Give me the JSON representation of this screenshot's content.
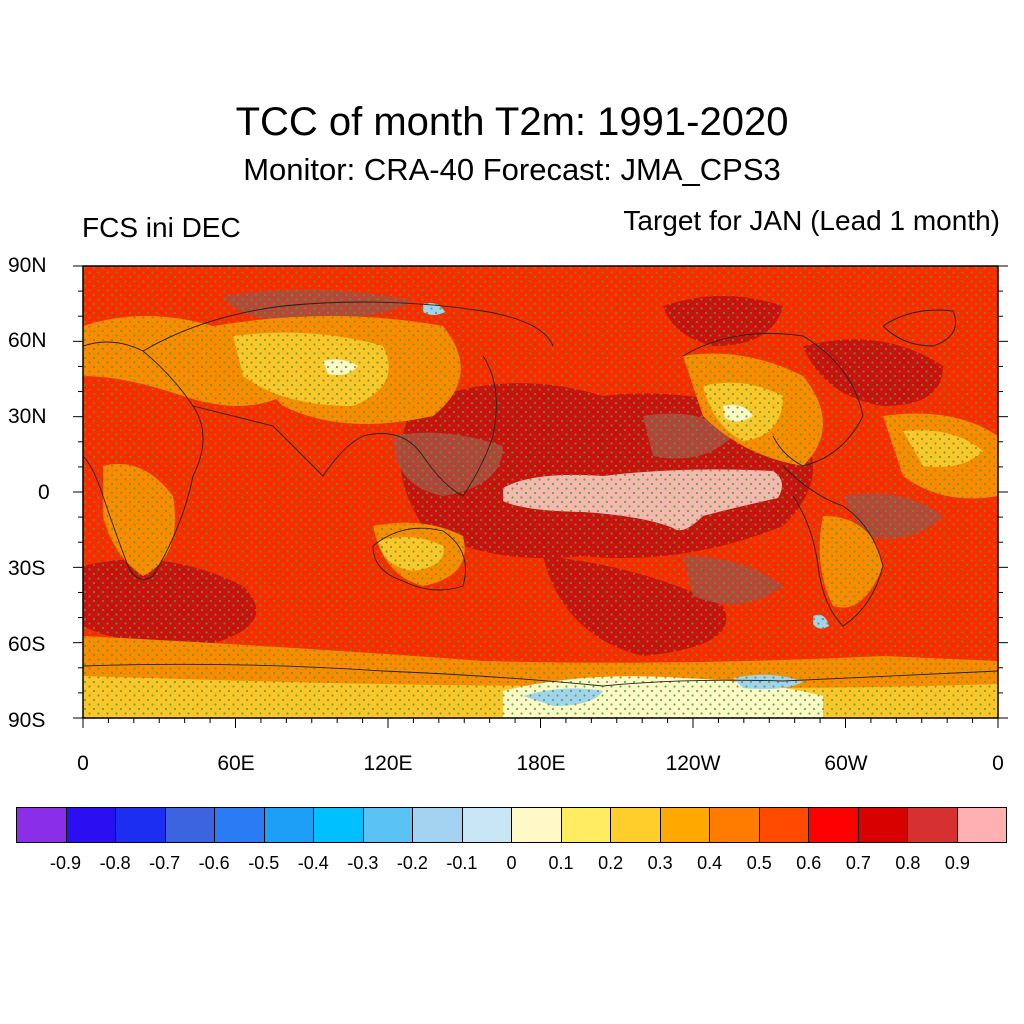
{
  "title": "TCC of month T2m: 1991-2020",
  "subtitle": "Monitor: CRA-40   Forecast: JMA_CPS3",
  "left_label": "FCS ini DEC",
  "right_label": "Target for JAN (Lead 1 month)",
  "lat_labels": [
    "90N",
    "60N",
    "30N",
    "0",
    "30S",
    "60S",
    "90S"
  ],
  "lon_labels": [
    "0",
    "60E",
    "120E",
    "180E",
    "120W",
    "60W",
    "0"
  ],
  "colorbar": {
    "colors": [
      "#8a2ee8",
      "#2b0ff2",
      "#1b2ef2",
      "#3c63e0",
      "#2b7bf5",
      "#1c9ff7",
      "#00c0ff",
      "#5bc3f3",
      "#a3d3f0",
      "#c9e6f7",
      "#fff9c8",
      "#ffec60",
      "#ffce2a",
      "#ffa900",
      "#ff7c00",
      "#ff4a00",
      "#ff0000",
      "#d90000",
      "#d63030",
      "#ffb0b0"
    ],
    "labels": [
      "-0.9",
      "-0.8",
      "-0.7",
      "-0.6",
      "-0.5",
      "-0.4",
      "-0.3",
      "-0.2",
      "-0.1",
      "0",
      "0.1",
      "0.2",
      "0.3",
      "0.4",
      "0.5",
      "0.6",
      "0.7",
      "0.8",
      "0.9"
    ]
  },
  "stipple_color": "#3caa28"
}
